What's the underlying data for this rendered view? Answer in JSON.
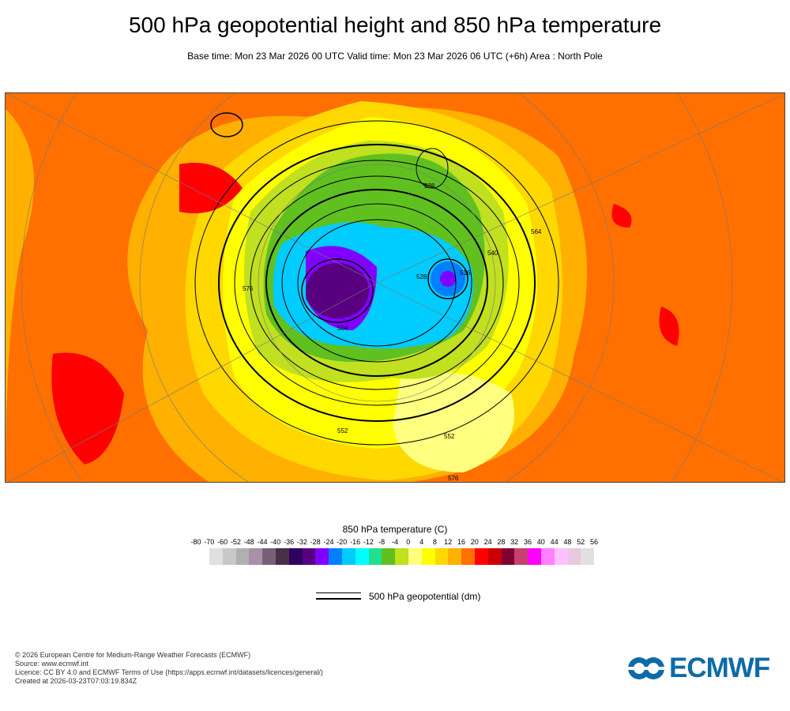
{
  "header": {
    "title": "500 hPa geopotential height and 850 hPa temperature",
    "subtitle": "Base time: Mon 23 Mar 2026 00 UTC Valid time: Mon 23 Mar 2026 06 UTC (+6h) Area : North Pole"
  },
  "map": {
    "contour_labels": [
      "576",
      "552",
      "528",
      "516",
      "504",
      "540",
      "564",
      "576",
      "528",
      "552"
    ]
  },
  "colorbar": {
    "title": "850 hPa temperature (C)",
    "labels": [
      "-80",
      "-70",
      "-60",
      "-52",
      "-48",
      "-44",
      "-40",
      "-36",
      "-32",
      "-28",
      "-24",
      "-20",
      "-16",
      "-12",
      "-8",
      "-4",
      "0",
      "4",
      "8",
      "12",
      "16",
      "20",
      "24",
      "28",
      "32",
      "36",
      "40",
      "44",
      "48",
      "52",
      "56"
    ],
    "colors": [
      "#e0e0e0",
      "#c8c8c8",
      "#b0b0b0",
      "#a890a8",
      "#786078",
      "#483048",
      "#300060",
      "#580080",
      "#8000ff",
      "#0080ff",
      "#00ccff",
      "#00ffff",
      "#20e090",
      "#60c020",
      "#c0e020",
      "#ffff80",
      "#ffff00",
      "#ffd800",
      "#ffb000",
      "#ff7000",
      "#ff0000",
      "#cc0000",
      "#800030",
      "#c84070",
      "#ff00ff",
      "#ff80ff",
      "#ffc0ff",
      "#e8c8e0",
      "#e0e0e0"
    ]
  },
  "legend": {
    "label": "500 hPa geopotential (dm)"
  },
  "footer": {
    "lines": [
      "© 2026 European Centre for Medium-Range Weather Forecasts (ECMWF)",
      "Source: www.ecmwf.int",
      "Licence: CC BY 4.0 and ECMWF Terms of Use (https://apps.ecmwf.int/datasets/licences/general/)",
      "Created at 2026-03-23T07:03:19.834Z"
    ]
  },
  "logo": {
    "text": "ECMWF"
  }
}
